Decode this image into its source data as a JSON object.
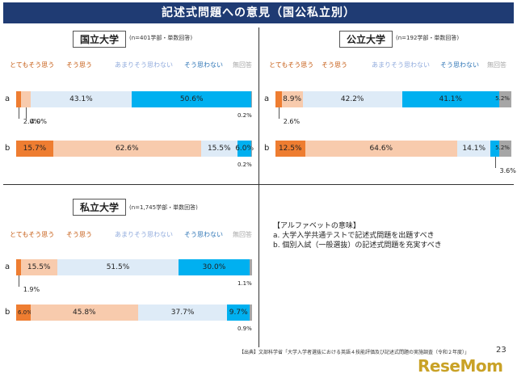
{
  "title": "記述式問題への意見（国公私立別）",
  "colors": {
    "c1": "#ee7d31",
    "c2": "#f8cbad",
    "c3": "#deebf7",
    "c4": "#00b0f0",
    "c5": "#a6a6a6"
  },
  "legend": [
    "とてもそう思う",
    "そう思う",
    "あまりそう思わない",
    "そう思わない",
    "無回答"
  ],
  "legend_colors": [
    "#c55a11",
    "#c55a11",
    "#8faadc",
    "#2e75b6",
    "#a6a6a6"
  ],
  "chart_data": [
    {
      "type": "bar",
      "stacked": true,
      "orientation": "horizontal",
      "title": "国立大学",
      "note": "(n=401学部・単数回答)",
      "categories": [
        "a",
        "b"
      ],
      "series": [
        {
          "name": "とてもそう思う",
          "values": [
            2.0,
            15.7
          ]
        },
        {
          "name": "そう思う",
          "values": [
            4.0,
            62.6
          ]
        },
        {
          "name": "あまりそう思わない",
          "values": [
            43.1,
            15.5
          ]
        },
        {
          "name": "そう思わない",
          "values": [
            50.6,
            6.0
          ]
        },
        {
          "name": "無回答",
          "values": [
            0.2,
            0.2
          ]
        }
      ]
    },
    {
      "type": "bar",
      "stacked": true,
      "orientation": "horizontal",
      "title": "公立大学",
      "note": "(n=192学部・単数回答)",
      "categories": [
        "a",
        "b"
      ],
      "series": [
        {
          "name": "とてもそう思う",
          "values": [
            2.6,
            12.5
          ]
        },
        {
          "name": "そう思う",
          "values": [
            8.9,
            64.6
          ]
        },
        {
          "name": "あまりそう思わない",
          "values": [
            42.2,
            14.1
          ]
        },
        {
          "name": "そう思わない",
          "values": [
            41.1,
            3.6
          ]
        },
        {
          "name": "無回答",
          "values": [
            5.2,
            5.2
          ]
        }
      ]
    },
    {
      "type": "bar",
      "stacked": true,
      "orientation": "horizontal",
      "title": "私立大学",
      "note": "(n=1,745学部・単数回答)",
      "categories": [
        "a",
        "b"
      ],
      "series": [
        {
          "name": "とてもそう思う",
          "values": [
            1.9,
            6.0
          ]
        },
        {
          "name": "そう思う",
          "values": [
            15.5,
            45.8
          ]
        },
        {
          "name": "あまりそう思わない",
          "values": [
            51.5,
            37.7
          ]
        },
        {
          "name": "そう思わない",
          "values": [
            30.0,
            9.7
          ]
        },
        {
          "name": "無回答",
          "values": [
            1.1,
            0.9
          ]
        }
      ]
    }
  ],
  "labels": [
    {
      "a": [
        "2.0%",
        "4.0%",
        "43.1%",
        "50.6%",
        "0.2%"
      ],
      "b": [
        "15.7%",
        "62.6%",
        "15.5%",
        "6.0%",
        "0.2%"
      ]
    },
    {
      "a": [
        "2.6%",
        "8.9%",
        "42.2%",
        "41.1%",
        "5.2%"
      ],
      "b": [
        "12.5%",
        "64.6%",
        "14.1%",
        "3.6%",
        "5.2%"
      ]
    },
    {
      "a": [
        "1.9%",
        "15.5%",
        "51.5%",
        "30.0%",
        "1.1%"
      ],
      "b": [
        "6.0%",
        "45.8%",
        "37.7%",
        "9.7%",
        "0.9%"
      ]
    }
  ],
  "notes": {
    "heading": "【アルファベットの意味】",
    "a": "a. 大学入学共通テストで記述式問題を出題すべき",
    "b": "b. 個別入試（一般選抜）の記述式問題を充実すべき"
  },
  "source": "【出典】文部科学省「大学入学者選抜における英語４技能評価及び記述式問題の実施調査（令和２年度）」",
  "page": "23",
  "watermark": {
    "a": "Rese",
    "b": "Mom"
  }
}
